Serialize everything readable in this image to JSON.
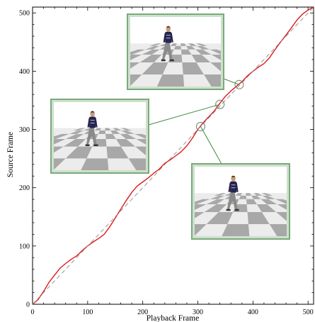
{
  "chart_data": {
    "type": "line",
    "xlabel": "Playback Frame",
    "ylabel": "Source Frame",
    "xlim": [
      0,
      510
    ],
    "ylim": [
      0,
      510
    ],
    "x_ticks": [
      0,
      100,
      200,
      300,
      400,
      500
    ],
    "x_tick_labels": [
      "0",
      "100",
      "200",
      "300",
      "400",
      "500"
    ],
    "y_ticks": [
      0,
      100,
      200,
      300,
      400,
      500
    ],
    "y_tick_labels": [
      "0",
      "100",
      "200",
      "300",
      "400",
      "500"
    ],
    "grid": false,
    "series": [
      {
        "style": "solid",
        "color": "#e01818",
        "x": [
          0,
          10,
          20,
          30,
          40,
          50,
          60,
          70,
          80,
          90,
          100,
          110,
          120,
          130,
          140,
          150,
          160,
          170,
          180,
          190,
          200,
          210,
          220,
          230,
          240,
          250,
          260,
          270,
          280,
          290,
          300,
          310,
          320,
          330,
          340,
          350,
          360,
          370,
          380,
          390,
          400,
          410,
          420,
          430,
          440,
          450,
          460,
          470,
          480,
          490,
          500,
          510
        ],
        "values": [
          0,
          8,
          22,
          38,
          50,
          62,
          70,
          77,
          83,
          92,
          100,
          107,
          113,
          120,
          133,
          148,
          163,
          178,
          192,
          203,
          210,
          217,
          225,
          232,
          242,
          248,
          255,
          262,
          272,
          285,
          300,
          312,
          322,
          332,
          345,
          357,
          366,
          374,
          382,
          392,
          400,
          407,
          413,
          423,
          437,
          450,
          462,
          475,
          488,
          498,
          505,
          510
        ]
      },
      {
        "style": "dashed",
        "color": "#8a8a8a",
        "x": [
          0,
          510
        ],
        "values": [
          0,
          510
        ]
      }
    ],
    "markers": [
      {
        "x": 305,
        "y": 305
      },
      {
        "x": 340,
        "y": 343
      },
      {
        "x": 375,
        "y": 377
      }
    ],
    "callouts": [
      {
        "name": "top",
        "target": 2,
        "content": "skeleton-frame"
      },
      {
        "name": "left",
        "target": 1,
        "content": "skeleton-frame"
      },
      {
        "name": "right",
        "target": 0,
        "content": "skeleton-frame"
      }
    ],
    "colors": {
      "callout_frame": "#7aaa7a",
      "callout_line": "#3f8a3f",
      "sky": "#ffffff",
      "checker_dark": "#a8a8a8",
      "checker_light": "#ececec",
      "shirt": "#252550",
      "pants": "#8a8a8a"
    }
  }
}
